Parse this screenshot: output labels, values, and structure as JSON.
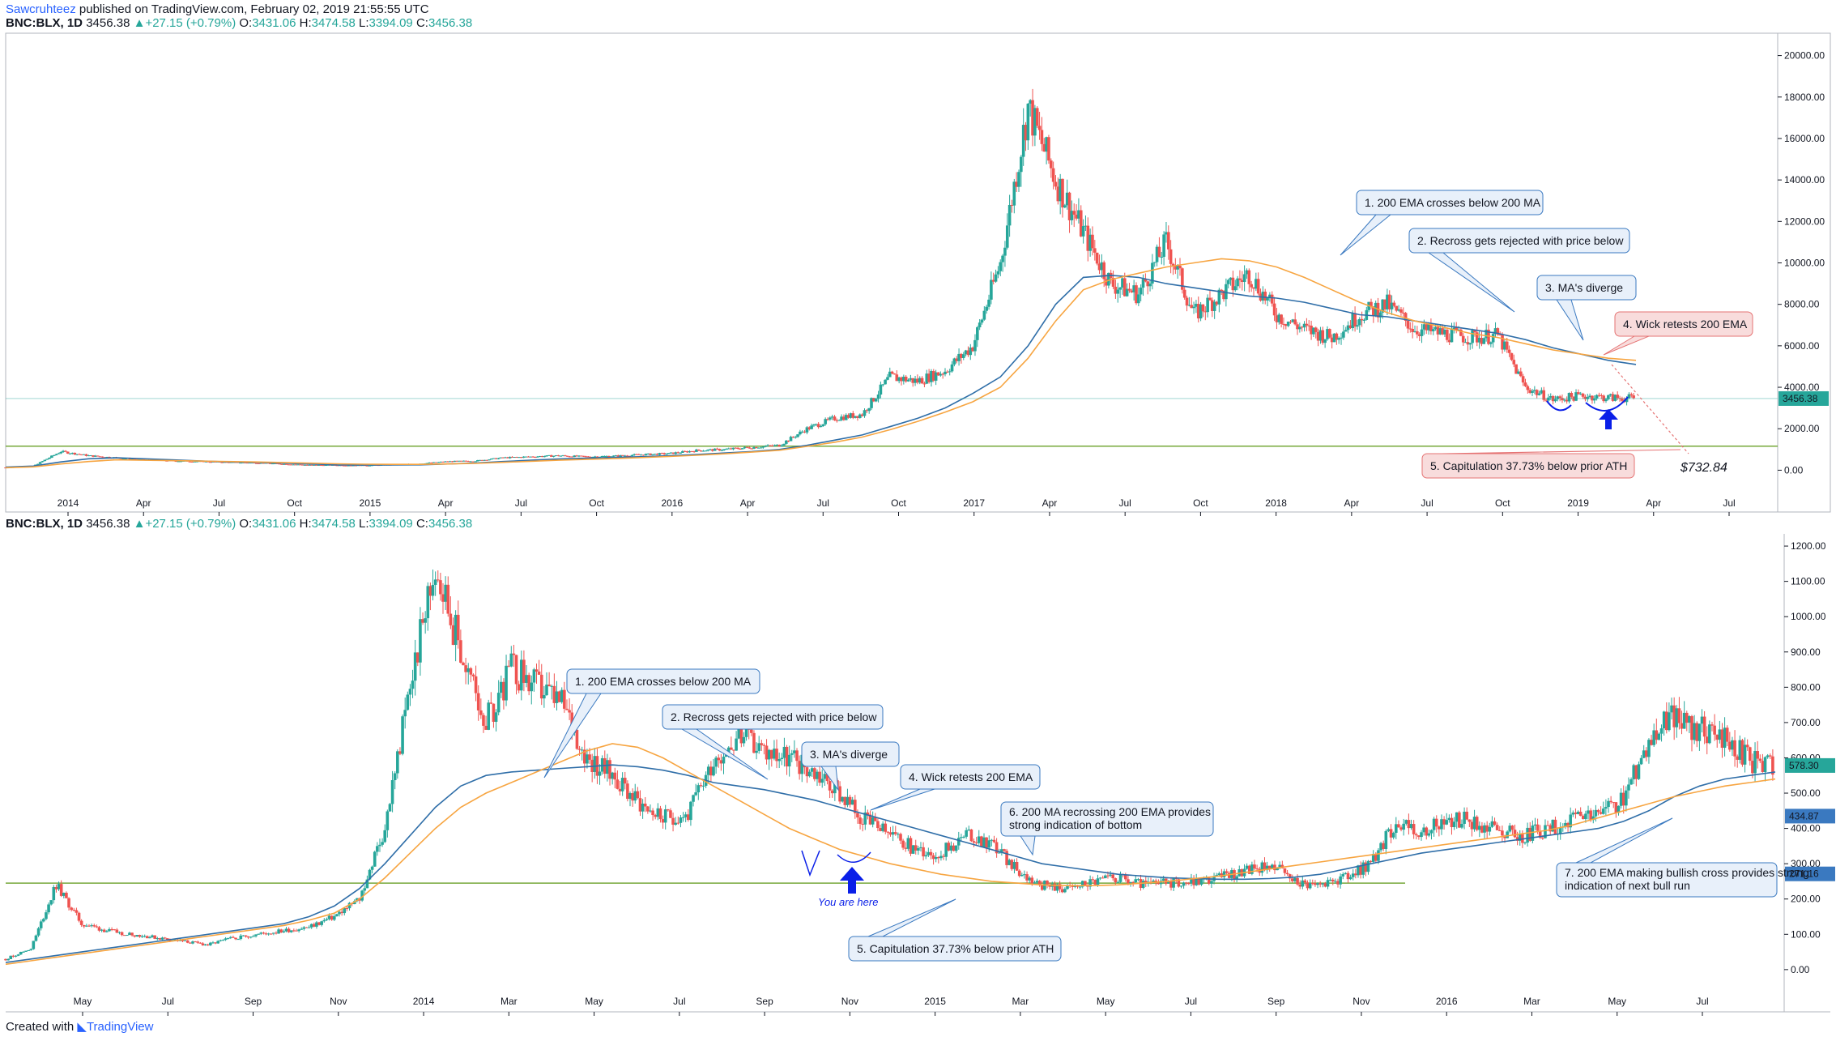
{
  "header": {
    "author": "Sawcruhteez",
    "published": "published on TradingView.com, February 02, 2019 21:55:55 UTC"
  },
  "legend": {
    "symbol": "BNC:BLX, 1D",
    "last": "3456.38",
    "change": "▲+27.15 (+0.79%)",
    "o_label": "O:",
    "o": "3431.06",
    "h_label": "H:",
    "h": "3474.58",
    "l_label": "L:",
    "l": "3394.09",
    "c_label": "C:",
    "c": "3456.38"
  },
  "footer": {
    "created": "Created with",
    "brand": "TradingView"
  },
  "colors": {
    "up": "#26a69a",
    "down": "#ef5350",
    "ma": "#2f6ea8",
    "ema": "#f7a541",
    "support": "#76a83a",
    "price_tag": "#26a69a",
    "ma_tag": "#3a79c0",
    "callout_blue": "#e8f0fa",
    "callout_red": "#f8dcdc",
    "arrow": "#0a1fe8"
  },
  "chart_data": [
    {
      "type": "candlestick",
      "name": "top",
      "yticks": [
        "20000.00",
        "18000.00",
        "16000.00",
        "14000.00",
        "12000.00",
        "10000.00",
        "8000.00",
        "6000.00",
        "4000.00",
        "2000.00",
        "0.00"
      ],
      "ylim": [
        -1000,
        21000
      ],
      "xticks": [
        "2014",
        "Apr",
        "Jul",
        "Oct",
        "2015",
        "Apr",
        "Jul",
        "Oct",
        "2016",
        "Apr",
        "Jul",
        "Oct",
        "2017",
        "Apr",
        "Jul",
        "Oct",
        "2018",
        "Apr",
        "Jul",
        "Oct",
        "2019",
        "Apr",
        "Jul"
      ],
      "price_label": "3456.38",
      "support_level": 1160,
      "price_line": 3456.38,
      "target_label": "$732.84",
      "callouts": [
        {
          "text": "1. 200 EMA crosses below 200 MA",
          "style": "blue"
        },
        {
          "text": "2. Recross gets rejected with price below",
          "style": "blue"
        },
        {
          "text": "3. MA's diverge",
          "style": "blue"
        },
        {
          "text": "4. Wick retests 200 EMA",
          "style": "red"
        },
        {
          "text": "5. Capitulation 37.73% below prior ATH",
          "style": "red"
        }
      ],
      "series_close": [
        130,
        200,
        900,
        700,
        600,
        500,
        450,
        420,
        380,
        360,
        300,
        250,
        240,
        230,
        260,
        320,
        420,
        450,
        600,
        650,
        700,
        650,
        680,
        750,
        800,
        950,
        1000,
        1100,
        1200,
        2000,
        2500,
        2700,
        4500,
        4300,
        4800,
        6000,
        10000,
        17500,
        14000,
        11500,
        9000,
        8500,
        11000,
        7500,
        8500,
        9500,
        7500,
        6800,
        6400,
        7500,
        8000,
        6800,
        6600,
        6400,
        6500,
        4000,
        3400,
        3600,
        3500,
        3456
      ],
      "series_ma": [
        150,
        200,
        400,
        550,
        600,
        550,
        500,
        450,
        400,
        380,
        340,
        300,
        260,
        250,
        250,
        260,
        300,
        350,
        420,
        480,
        540,
        580,
        620,
        650,
        700,
        760,
        830,
        900,
        1000,
        1200,
        1450,
        1700,
        2100,
        2500,
        3000,
        3700,
        4500,
        6000,
        8000,
        9300,
        9400,
        9300,
        9000,
        8800,
        8600,
        8400,
        8300,
        8100,
        7800,
        7500,
        7400,
        7200,
        7000,
        6800,
        6600,
        6300,
        5900,
        5600,
        5300,
        5100
      ],
      "series_ema": [
        120,
        160,
        300,
        420,
        500,
        480,
        460,
        440,
        420,
        400,
        370,
        340,
        310,
        290,
        280,
        280,
        300,
        330,
        380,
        430,
        480,
        520,
        560,
        610,
        660,
        720,
        790,
        870,
        960,
        1150,
        1350,
        1600,
        1950,
        2350,
        2800,
        3300,
        4000,
        5400,
        7200,
        8700,
        9200,
        9500,
        9800,
        10000,
        10200,
        10100,
        9800,
        9300,
        8700,
        8100,
        7600,
        7200,
        6900,
        6600,
        6400,
        6100,
        5800,
        5600,
        5400,
        5300
      ]
    },
    {
      "type": "candlestick",
      "name": "bottom",
      "yticks": [
        "1200.00",
        "1100.00",
        "1000.00",
        "900.00",
        "800.00",
        "700.00",
        "600.00",
        "500.00",
        "400.00",
        "300.00",
        "200.00",
        "100.00",
        "0.00"
      ],
      "ylim": [
        -60,
        1230
      ],
      "xticks": [
        "May",
        "Jul",
        "Sep",
        "Nov",
        "2014",
        "Mar",
        "May",
        "Jul",
        "Sep",
        "Nov",
        "2015",
        "Mar",
        "May",
        "Jul",
        "Sep",
        "Nov",
        "2016",
        "Mar",
        "May",
        "Jul"
      ],
      "price_label": "578.30",
      "ma_label": "434.87",
      "ema_label": "271.16",
      "support_level": 245,
      "you_are_here": "You are here",
      "callouts": [
        {
          "text": "1. 200 EMA crosses below 200 MA",
          "style": "blue"
        },
        {
          "text": "2. Recross gets rejected with price below",
          "style": "blue"
        },
        {
          "text": "3. MA's diverge",
          "style": "blue"
        },
        {
          "text": "4. Wick retests 200 EMA",
          "style": "blue"
        },
        {
          "text": "6. 200 MA recrossing 200 EMA provides strong indication of bottom",
          "style": "blue"
        },
        {
          "text": "5. Capitulation 37.73% below prior ATH",
          "style": "blue"
        },
        {
          "text": "7. 200 EMA making bullish cross provides strong indication of next bull run",
          "style": "blue"
        }
      ],
      "series_close": [
        30,
        60,
        240,
        130,
        110,
        100,
        90,
        80,
        70,
        90,
        100,
        110,
        120,
        150,
        200,
        400,
        800,
        1150,
        900,
        700,
        850,
        800,
        750,
        600,
        550,
        480,
        430,
        440,
        600,
        660,
        620,
        600,
        560,
        500,
        420,
        380,
        340,
        330,
        380,
        360,
        280,
        240,
        230,
        250,
        260,
        240,
        245,
        250,
        260,
        280,
        300,
        250,
        240,
        260,
        300,
        420,
        380,
        430,
        420,
        400,
        380,
        400,
        420,
        440,
        480,
        650,
        720,
        680,
        650,
        590,
        580
      ],
      "series_ma": [
        20,
        30,
        40,
        50,
        60,
        70,
        80,
        90,
        100,
        110,
        120,
        130,
        150,
        180,
        230,
        300,
        380,
        460,
        520,
        550,
        560,
        565,
        570,
        575,
        580,
        575,
        565,
        550,
        530,
        520,
        510,
        495,
        480,
        460,
        440,
        420,
        400,
        380,
        360,
        340,
        320,
        300,
        290,
        280,
        270,
        265,
        260,
        258,
        256,
        256,
        258,
        262,
        270,
        285,
        300,
        315,
        330,
        340,
        350,
        360,
        370,
        380,
        390,
        400,
        420,
        450,
        490,
        520,
        540,
        550,
        560
      ],
      "series_ema": [
        15,
        25,
        35,
        45,
        55,
        65,
        75,
        85,
        95,
        105,
        115,
        125,
        140,
        160,
        200,
        260,
        330,
        400,
        460,
        500,
        530,
        560,
        590,
        620,
        640,
        630,
        600,
        560,
        520,
        480,
        440,
        400,
        370,
        340,
        320,
        300,
        285,
        270,
        260,
        250,
        245,
        240,
        238,
        238,
        240,
        245,
        250,
        258,
        265,
        275,
        285,
        295,
        305,
        315,
        325,
        335,
        345,
        355,
        365,
        375,
        385,
        395,
        410,
        430,
        450,
        470,
        490,
        505,
        520,
        530,
        540
      ]
    }
  ]
}
